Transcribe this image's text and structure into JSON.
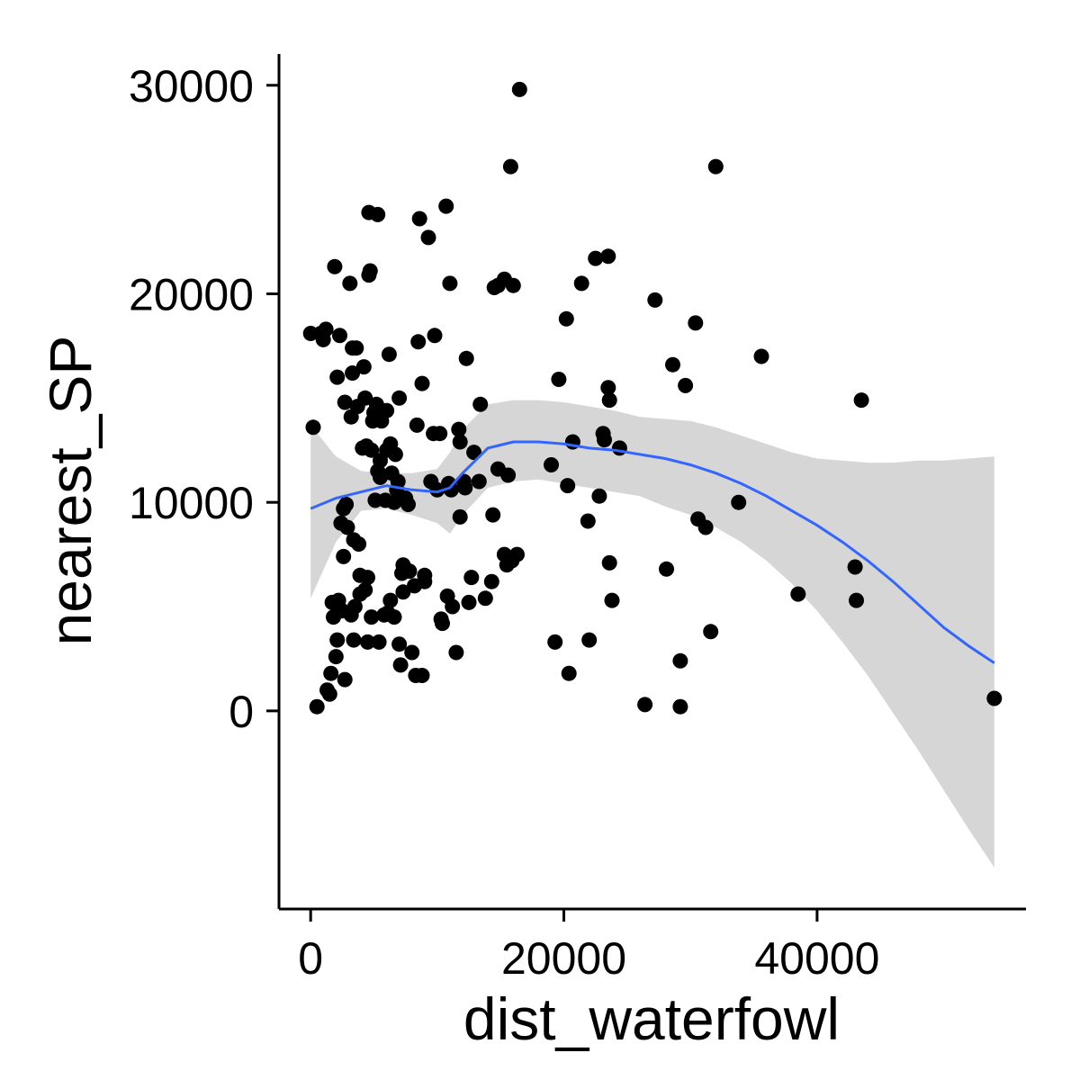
{
  "chart_data": {
    "type": "scatter",
    "xlabel": "dist_waterfowl",
    "ylabel": "nearest_SP",
    "xlim": [
      -2500,
      56500
    ],
    "ylim": [
      -9500,
      31500
    ],
    "grid": false,
    "legend": "none",
    "xticks": [
      0,
      20000,
      40000
    ],
    "yticks": [
      0,
      10000,
      20000,
      30000
    ],
    "colors": {
      "points": "#000000",
      "smooth_line": "#3366FF",
      "ribbon": "#D6D6D6"
    },
    "points": [
      [
        0,
        18100
      ],
      [
        200,
        13600
      ],
      [
        500,
        200
      ],
      [
        800,
        18100
      ],
      [
        1000,
        17800
      ],
      [
        1200,
        18300
      ],
      [
        1300,
        1000
      ],
      [
        1500,
        800
      ],
      [
        1600,
        1800
      ],
      [
        1700,
        5200
      ],
      [
        1800,
        4500
      ],
      [
        1900,
        21300
      ],
      [
        2000,
        2600
      ],
      [
        2100,
        3400
      ],
      [
        2100,
        16000
      ],
      [
        2200,
        5300
      ],
      [
        2300,
        18000
      ],
      [
        2400,
        9000
      ],
      [
        2500,
        4800
      ],
      [
        2600,
        9700
      ],
      [
        2600,
        7400
      ],
      [
        2700,
        1500
      ],
      [
        2700,
        14800
      ],
      [
        2800,
        9900
      ],
      [
        2900,
        8800
      ],
      [
        3100,
        20500
      ],
      [
        3200,
        4600
      ],
      [
        3200,
        14100
      ],
      [
        3300,
        16200
      ],
      [
        3300,
        17400
      ],
      [
        3400,
        8200
      ],
      [
        3400,
        3400
      ],
      [
        3500,
        5000
      ],
      [
        3600,
        17400
      ],
      [
        3700,
        14600
      ],
      [
        3800,
        8000
      ],
      [
        3900,
        5600
      ],
      [
        3900,
        6500
      ],
      [
        4100,
        12600
      ],
      [
        4200,
        16500
      ],
      [
        4300,
        15000
      ],
      [
        4300,
        5800
      ],
      [
        4400,
        12700
      ],
      [
        4500,
        3300
      ],
      [
        4500,
        6400
      ],
      [
        4600,
        20900
      ],
      [
        4600,
        23900
      ],
      [
        4700,
        21100
      ],
      [
        4800,
        4500
      ],
      [
        4800,
        12500
      ],
      [
        4900,
        13900
      ],
      [
        5000,
        14300
      ],
      [
        5100,
        10100
      ],
      [
        5200,
        14700
      ],
      [
        5300,
        23800
      ],
      [
        5300,
        11500
      ],
      [
        5400,
        3300
      ],
      [
        5500,
        12000
      ],
      [
        5500,
        11200
      ],
      [
        5600,
        13900
      ],
      [
        5800,
        4600
      ],
      [
        5900,
        10100
      ],
      [
        6000,
        12500
      ],
      [
        6000,
        14400
      ],
      [
        6100,
        4700
      ],
      [
        6200,
        17100
      ],
      [
        6300,
        5300
      ],
      [
        6300,
        12800
      ],
      [
        6400,
        11400
      ],
      [
        6600,
        4500
      ],
      [
        6600,
        10000
      ],
      [
        6700,
        12300
      ],
      [
        6800,
        10600
      ],
      [
        6900,
        11000
      ],
      [
        7000,
        3200
      ],
      [
        7000,
        15000
      ],
      [
        7100,
        2200
      ],
      [
        7200,
        6600
      ],
      [
        7300,
        5700
      ],
      [
        7300,
        7000
      ],
      [
        7500,
        10200
      ],
      [
        7700,
        9900
      ],
      [
        7800,
        6700
      ],
      [
        8000,
        2800
      ],
      [
        8200,
        6000
      ],
      [
        8300,
        1700
      ],
      [
        8400,
        13700
      ],
      [
        8500,
        17700
      ],
      [
        8600,
        23600
      ],
      [
        8800,
        1700
      ],
      [
        8800,
        15700
      ],
      [
        9000,
        6500
      ],
      [
        9000,
        6200
      ],
      [
        9300,
        22700
      ],
      [
        9500,
        11000
      ],
      [
        9700,
        13300
      ],
      [
        9800,
        18000
      ],
      [
        10000,
        10600
      ],
      [
        10200,
        13300
      ],
      [
        10300,
        4400
      ],
      [
        10400,
        4200
      ],
      [
        10700,
        24200
      ],
      [
        10800,
        5500
      ],
      [
        10900,
        10900
      ],
      [
        11000,
        20500
      ],
      [
        11100,
        10600
      ],
      [
        11200,
        5000
      ],
      [
        11500,
        2800
      ],
      [
        11700,
        13500
      ],
      [
        11800,
        12900
      ],
      [
        11800,
        9300
      ],
      [
        12100,
        11000
      ],
      [
        12200,
        10700
      ],
      [
        12300,
        16900
      ],
      [
        12500,
        5200
      ],
      [
        12700,
        6400
      ],
      [
        12900,
        12400
      ],
      [
        13300,
        11000
      ],
      [
        13400,
        14700
      ],
      [
        13800,
        5400
      ],
      [
        14300,
        6200
      ],
      [
        14400,
        9400
      ],
      [
        14500,
        20300
      ],
      [
        14800,
        20400
      ],
      [
        14800,
        11600
      ],
      [
        15300,
        20700
      ],
      [
        15300,
        7500
      ],
      [
        15500,
        7000
      ],
      [
        15600,
        11300
      ],
      [
        15800,
        26100
      ],
      [
        15900,
        7200
      ],
      [
        16000,
        20400
      ],
      [
        16300,
        7500
      ],
      [
        16500,
        29800
      ],
      [
        19000,
        11800
      ],
      [
        19300,
        3300
      ],
      [
        19600,
        15900
      ],
      [
        20200,
        18800
      ],
      [
        20300,
        10800
      ],
      [
        20400,
        1800
      ],
      [
        20700,
        12900
      ],
      [
        21400,
        20500
      ],
      [
        21900,
        9100
      ],
      [
        22000,
        3400
      ],
      [
        22500,
        21700
      ],
      [
        22800,
        10300
      ],
      [
        23100,
        13300
      ],
      [
        23200,
        13000
      ],
      [
        23500,
        21800
      ],
      [
        23500,
        15500
      ],
      [
        23600,
        14900
      ],
      [
        23600,
        7100
      ],
      [
        23800,
        5300
      ],
      [
        24400,
        12600
      ],
      [
        26400,
        300
      ],
      [
        27200,
        19700
      ],
      [
        28100,
        6800
      ],
      [
        28600,
        16600
      ],
      [
        29200,
        200
      ],
      [
        29200,
        2400
      ],
      [
        29600,
        15600
      ],
      [
        30400,
        18600
      ],
      [
        30600,
        9200
      ],
      [
        31200,
        8800
      ],
      [
        31600,
        3800
      ],
      [
        32000,
        26100
      ],
      [
        33800,
        10000
      ],
      [
        35600,
        17000
      ],
      [
        38500,
        5600
      ],
      [
        43000,
        6900
      ],
      [
        43100,
        5300
      ],
      [
        43500,
        14900
      ],
      [
        54000,
        600
      ]
    ],
    "smooth": {
      "x": [
        0,
        2000,
        4000,
        6000,
        8000,
        10000,
        11000,
        12000,
        14000,
        16000,
        18000,
        20000,
        22000,
        24000,
        26000,
        28000,
        30000,
        32000,
        34000,
        36000,
        38000,
        40000,
        42000,
        44000,
        46000,
        48000,
        50000,
        52000,
        54000
      ],
      "y": [
        9700,
        10200,
        10500,
        10800,
        10600,
        10500,
        10700,
        11400,
        12600,
        12900,
        12900,
        12800,
        12600,
        12500,
        12300,
        12100,
        11800,
        11400,
        10900,
        10300,
        9600,
        8900,
        8100,
        7200,
        6200,
        5100,
        4000,
        3100,
        2300
      ],
      "lower": [
        5400,
        8100,
        9600,
        9700,
        9400,
        9000,
        8500,
        9400,
        10700,
        11000,
        11100,
        10900,
        10700,
        10500,
        10300,
        9800,
        9400,
        8800,
        8100,
        7200,
        6100,
        4800,
        3300,
        1700,
        -100,
        -1900,
        -3800,
        -5700,
        -7500
      ],
      "upper": [
        13700,
        12200,
        11500,
        11400,
        11400,
        11600,
        12400,
        13500,
        14700,
        14900,
        14900,
        14800,
        14600,
        14400,
        14100,
        14000,
        13900,
        13600,
        13200,
        12800,
        12400,
        12100,
        12000,
        11900,
        11900,
        12000,
        12000,
        12100,
        12200
      ]
    }
  }
}
